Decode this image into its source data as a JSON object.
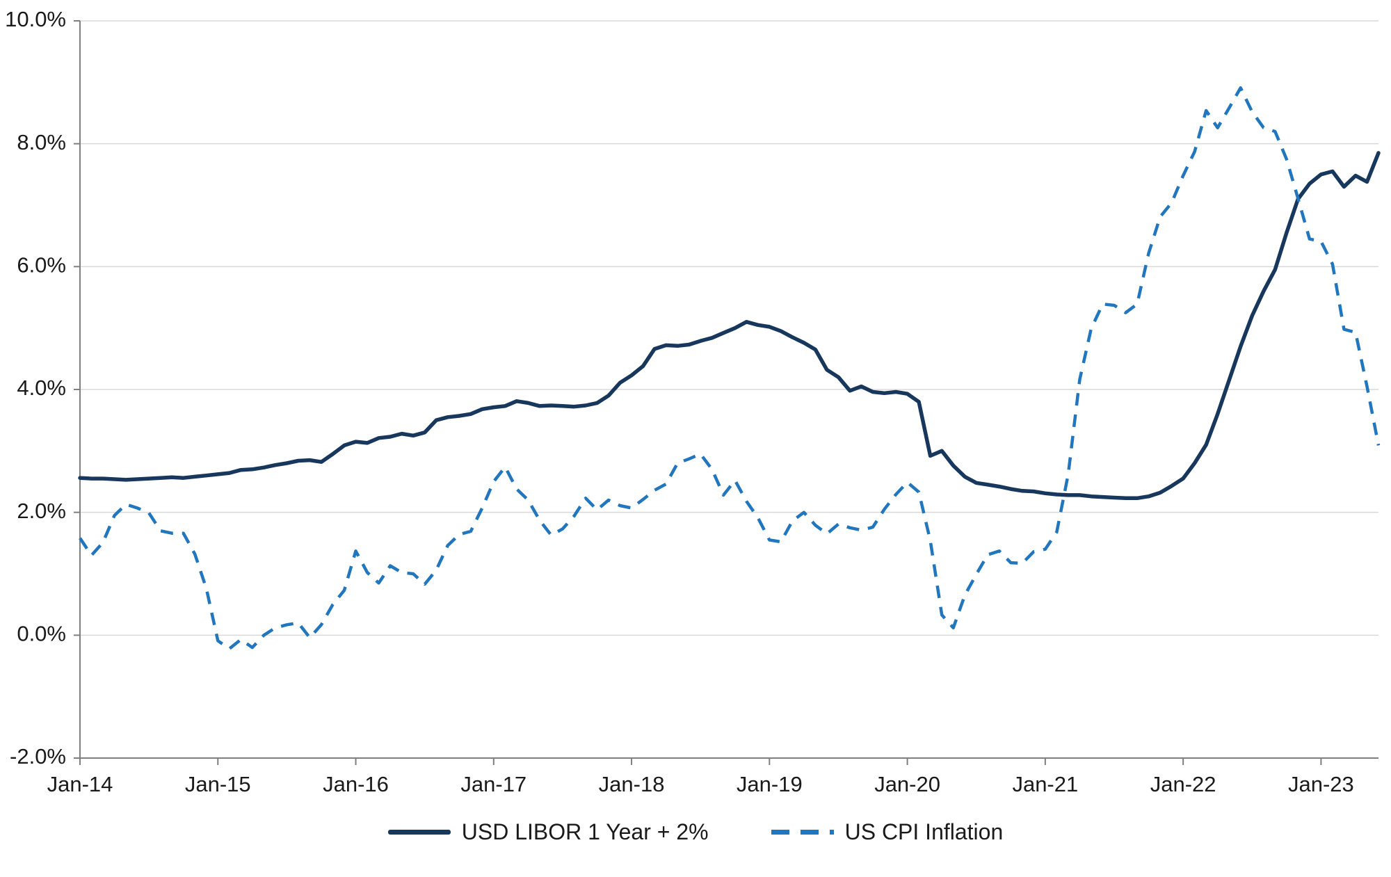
{
  "chart_data": {
    "type": "line",
    "title": "",
    "xlabel": "",
    "ylabel": "",
    "ylim": [
      -2,
      10
    ],
    "grid": "horizontal-light",
    "grid_color": "#d9d9d9",
    "axis_color": "#7f7f7f",
    "legend_position": "bottom",
    "y_ticks": [
      -2,
      0,
      2,
      4,
      6,
      8,
      10
    ],
    "y_tick_labels": [
      "-2.0%",
      "0.0%",
      "2.0%",
      "4.0%",
      "6.0%",
      "8.0%",
      "10.0%"
    ],
    "x_tick_labels": [
      "Jan-14",
      "Jan-15",
      "Jan-16",
      "Jan-17",
      "Jan-18",
      "Jan-19",
      "Jan-20",
      "Jan-21",
      "Jan-22",
      "Jan-23"
    ],
    "x": [
      "Jan-14",
      "Feb-14",
      "Mar-14",
      "Apr-14",
      "May-14",
      "Jun-14",
      "Jul-14",
      "Aug-14",
      "Sep-14",
      "Oct-14",
      "Nov-14",
      "Dec-14",
      "Jan-15",
      "Feb-15",
      "Mar-15",
      "Apr-15",
      "May-15",
      "Jun-15",
      "Jul-15",
      "Aug-15",
      "Sep-15",
      "Oct-15",
      "Nov-15",
      "Dec-15",
      "Jan-16",
      "Feb-16",
      "Mar-16",
      "Apr-16",
      "May-16",
      "Jun-16",
      "Jul-16",
      "Aug-16",
      "Sep-16",
      "Oct-16",
      "Nov-16",
      "Dec-16",
      "Jan-17",
      "Feb-17",
      "Mar-17",
      "Apr-17",
      "May-17",
      "Jun-17",
      "Jul-17",
      "Aug-17",
      "Sep-17",
      "Oct-17",
      "Nov-17",
      "Dec-17",
      "Jan-18",
      "Feb-18",
      "Mar-18",
      "Apr-18",
      "May-18",
      "Jun-18",
      "Jul-18",
      "Aug-18",
      "Sep-18",
      "Oct-18",
      "Nov-18",
      "Dec-18",
      "Jan-19",
      "Feb-19",
      "Mar-19",
      "Apr-19",
      "May-19",
      "Jun-19",
      "Jul-19",
      "Aug-19",
      "Sep-19",
      "Oct-19",
      "Nov-19",
      "Dec-19",
      "Jan-20",
      "Feb-20",
      "Mar-20",
      "Apr-20",
      "May-20",
      "Jun-20",
      "Jul-20",
      "Aug-20",
      "Sep-20",
      "Oct-20",
      "Nov-20",
      "Dec-20",
      "Jan-21",
      "Feb-21",
      "Mar-21",
      "Apr-21",
      "May-21",
      "Jun-21",
      "Jul-21",
      "Aug-21",
      "Sep-21",
      "Oct-21",
      "Nov-21",
      "Dec-21",
      "Jan-22",
      "Feb-22",
      "Mar-22",
      "Apr-22",
      "May-22",
      "Jun-22",
      "Jul-22",
      "Aug-22",
      "Sep-22",
      "Oct-22",
      "Nov-22",
      "Dec-22",
      "Jan-23",
      "Feb-23",
      "Mar-23",
      "Apr-23",
      "May-23",
      "Jun-23"
    ],
    "series": [
      {
        "name": "USD LIBOR 1 Year + 2%",
        "style": "solid",
        "color": "#17375d",
        "values": [
          2.56,
          2.55,
          2.55,
          2.54,
          2.53,
          2.54,
          2.55,
          2.56,
          2.57,
          2.56,
          2.58,
          2.6,
          2.62,
          2.64,
          2.69,
          2.7,
          2.73,
          2.77,
          2.8,
          2.84,
          2.85,
          2.82,
          2.95,
          3.09,
          3.15,
          3.13,
          3.21,
          3.23,
          3.28,
          3.25,
          3.3,
          3.5,
          3.55,
          3.57,
          3.6,
          3.68,
          3.71,
          3.73,
          3.81,
          3.78,
          3.73,
          3.74,
          3.73,
          3.72,
          3.74,
          3.78,
          3.9,
          4.11,
          4.23,
          4.38,
          4.66,
          4.72,
          4.71,
          4.73,
          4.79,
          4.84,
          4.92,
          5.0,
          5.1,
          5.05,
          5.02,
          4.95,
          4.85,
          4.76,
          4.65,
          4.32,
          4.2,
          3.98,
          4.05,
          3.96,
          3.94,
          3.96,
          3.93,
          3.8,
          2.92,
          3.0,
          2.76,
          2.58,
          2.48,
          2.45,
          2.42,
          2.38,
          2.35,
          2.34,
          2.31,
          2.29,
          2.28,
          2.28,
          2.26,
          2.25,
          2.24,
          2.23,
          2.23,
          2.26,
          2.32,
          2.43,
          2.55,
          2.8,
          3.1,
          3.6,
          4.15,
          4.7,
          5.2,
          5.6,
          5.95,
          6.55,
          7.1,
          7.35,
          7.5,
          7.55,
          7.3,
          7.48,
          7.38,
          7.85
        ]
      },
      {
        "name": "US CPI Inflation",
        "style": "dashed",
        "color": "#2176bd",
        "values": [
          1.58,
          1.3,
          1.51,
          1.95,
          2.13,
          2.07,
          1.99,
          1.7,
          1.66,
          1.66,
          1.32,
          0.76,
          -0.09,
          -0.22,
          -0.07,
          -0.2,
          0.0,
          0.12,
          0.17,
          0.2,
          -0.04,
          0.17,
          0.5,
          0.73,
          1.37,
          1.02,
          0.85,
          1.13,
          1.02,
          1.0,
          0.83,
          1.06,
          1.46,
          1.64,
          1.69,
          2.07,
          2.5,
          2.74,
          2.38,
          2.2,
          1.87,
          1.63,
          1.73,
          1.94,
          2.23,
          2.04,
          2.2,
          2.11,
          2.07,
          2.21,
          2.36,
          2.46,
          2.8,
          2.87,
          2.95,
          2.7,
          2.28,
          2.52,
          2.18,
          1.91,
          1.55,
          1.52,
          1.86,
          2.0,
          1.79,
          1.65,
          1.81,
          1.75,
          1.71,
          1.76,
          2.05,
          2.29,
          2.49,
          2.33,
          1.54,
          0.33,
          0.12,
          0.65,
          0.99,
          1.31,
          1.37,
          1.18,
          1.17,
          1.36,
          1.4,
          1.68,
          2.62,
          4.16,
          4.99,
          5.39,
          5.37,
          5.25,
          5.39,
          6.22,
          6.81,
          7.04,
          7.48,
          7.87,
          8.54,
          8.26,
          8.58,
          8.91,
          8.52,
          8.26,
          8.2,
          7.75,
          7.11,
          6.45,
          6.41,
          6.04,
          4.98,
          4.93,
          4.05,
          3.09
        ]
      }
    ]
  },
  "legend": {
    "libor_label": "USD LIBOR 1 Year + 2%",
    "cpi_label": "US CPI Inflation"
  }
}
